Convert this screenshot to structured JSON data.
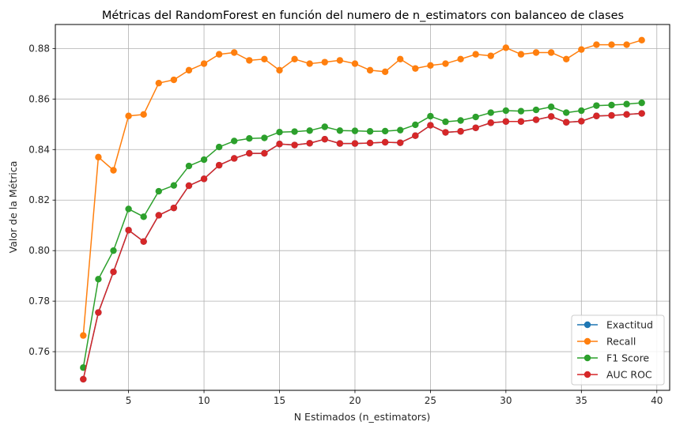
{
  "chart_data": {
    "type": "line",
    "title": "Métricas del RandomForest en función del numero de n_estimators con balanceo de clases",
    "xlabel": "N Estimados (n_estimators)",
    "ylabel": "Valor de la Métrica",
    "xlim": [
      0.15,
      40.85
    ],
    "ylim": [
      0.7447,
      0.8895
    ],
    "xticks": [
      5,
      10,
      15,
      20,
      25,
      30,
      35,
      40
    ],
    "yticks": [
      0.76,
      0.78,
      0.8,
      0.82,
      0.84,
      0.86,
      0.88
    ],
    "ytick_labels": [
      "0.76",
      "0.78",
      "0.80",
      "0.82",
      "0.84",
      "0.86",
      "0.88"
    ],
    "grid": true,
    "legend_position": "lower-right",
    "x": [
      2,
      3,
      4,
      5,
      6,
      7,
      8,
      9,
      10,
      11,
      12,
      13,
      14,
      15,
      16,
      17,
      18,
      19,
      20,
      21,
      22,
      23,
      24,
      25,
      26,
      27,
      28,
      29,
      30,
      31,
      32,
      33,
      34,
      35,
      36,
      37,
      38,
      39
    ],
    "series": [
      {
        "name": "Exactitud",
        "color": "#1f77b4",
        "values": [
          0.7491,
          0.7755,
          0.7916,
          0.8081,
          0.8036,
          0.814,
          0.8169,
          0.8257,
          0.8284,
          0.8338,
          0.8365,
          0.8385,
          0.8385,
          0.8422,
          0.8418,
          0.8425,
          0.8441,
          0.8424,
          0.8424,
          0.8426,
          0.8429,
          0.8427,
          0.8455,
          0.8496,
          0.8468,
          0.8472,
          0.8486,
          0.8506,
          0.8511,
          0.8511,
          0.8518,
          0.8531,
          0.8508,
          0.8512,
          0.8533,
          0.8535,
          0.8539,
          0.8543
        ]
      },
      {
        "name": "Recall",
        "color": "#ff7f0e",
        "values": [
          0.7664,
          0.837,
          0.8318,
          0.8533,
          0.8539,
          0.8663,
          0.8676,
          0.8714,
          0.874,
          0.8777,
          0.8784,
          0.8753,
          0.8758,
          0.8714,
          0.8758,
          0.874,
          0.8746,
          0.8753,
          0.874,
          0.8714,
          0.8708,
          0.8758,
          0.8721,
          0.8733,
          0.874,
          0.8758,
          0.8777,
          0.8771,
          0.8803,
          0.8777,
          0.8784,
          0.8784,
          0.8758,
          0.8796,
          0.8815,
          0.8815,
          0.8815,
          0.8833
        ]
      },
      {
        "name": "F1 Score",
        "color": "#2ca02c",
        "values": [
          0.7537,
          0.7887,
          0.8,
          0.8165,
          0.8134,
          0.8235,
          0.8258,
          0.8335,
          0.836,
          0.841,
          0.8434,
          0.8444,
          0.8446,
          0.8469,
          0.8471,
          0.8475,
          0.849,
          0.8475,
          0.8474,
          0.8472,
          0.8473,
          0.8477,
          0.8498,
          0.8532,
          0.851,
          0.8515,
          0.8529,
          0.8546,
          0.8554,
          0.8552,
          0.8557,
          0.8569,
          0.8546,
          0.8554,
          0.8574,
          0.8576,
          0.858,
          0.8585
        ]
      },
      {
        "name": "AUC ROC",
        "color": "#d62728",
        "values": [
          0.7491,
          0.7755,
          0.7916,
          0.8081,
          0.8036,
          0.814,
          0.8169,
          0.8257,
          0.8284,
          0.8338,
          0.8365,
          0.8385,
          0.8385,
          0.8422,
          0.8418,
          0.8425,
          0.8441,
          0.8424,
          0.8424,
          0.8426,
          0.8429,
          0.8427,
          0.8455,
          0.8496,
          0.8468,
          0.8472,
          0.8486,
          0.8506,
          0.8511,
          0.8511,
          0.8518,
          0.8531,
          0.8508,
          0.8512,
          0.8533,
          0.8535,
          0.8539,
          0.8543
        ]
      }
    ]
  }
}
